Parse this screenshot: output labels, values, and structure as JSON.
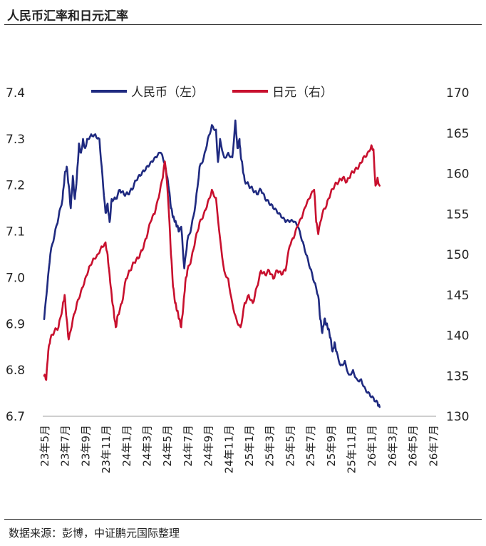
{
  "title": "人民币汇率和日元汇率",
  "source": "数据来源：彭博，中证鹏元国际整理",
  "chart_data": {
    "type": "line",
    "left_axis": {
      "min": 6.7,
      "max": 7.4,
      "ticks": [
        "6.7",
        "6.8",
        "6.9",
        "7.0",
        "7.1",
        "7.2",
        "7.3",
        "7.4"
      ]
    },
    "right_axis": {
      "min": 130,
      "max": 170,
      "ticks": [
        "130",
        "135",
        "140",
        "145",
        "150",
        "155",
        "160",
        "165",
        "170"
      ]
    },
    "x_ticks": [
      "23年5月",
      "23年7月",
      "23年9月",
      "23年11月",
      "24年1月",
      "24年3月",
      "24年5月",
      "24年7月",
      "24年9月",
      "24年11月",
      "25年1月",
      "25年3月",
      "25年5月",
      "25年7月",
      "25年9月",
      "25年11月",
      "26年1月",
      "26年3月",
      "26年5月",
      "26年7月"
    ],
    "legend": {
      "position": "top",
      "entries": [
        "人民币（左）",
        "日元（右）"
      ]
    },
    "series": [
      {
        "name": "人民币（左）",
        "axis": "left",
        "color": "#1f2a80",
        "points": [
          [
            0,
            6.91
          ],
          [
            0.15,
            6.98
          ],
          [
            0.3,
            7.05
          ],
          [
            0.5,
            7.09
          ],
          [
            0.7,
            7.13
          ],
          [
            0.9,
            7.17
          ],
          [
            1.0,
            7.22
          ],
          [
            1.1,
            7.24
          ],
          [
            1.2,
            7.2
          ],
          [
            1.3,
            7.15
          ],
          [
            1.4,
            7.22
          ],
          [
            1.5,
            7.17
          ],
          [
            1.6,
            7.22
          ],
          [
            1.7,
            7.29
          ],
          [
            1.8,
            7.27
          ],
          [
            1.9,
            7.3
          ],
          [
            2.0,
            7.28
          ],
          [
            2.1,
            7.3
          ],
          [
            2.3,
            7.31
          ],
          [
            2.5,
            7.31
          ],
          [
            2.7,
            7.3
          ],
          [
            2.85,
            7.22
          ],
          [
            3.0,
            7.14
          ],
          [
            3.1,
            7.16
          ],
          [
            3.2,
            7.12
          ],
          [
            3.3,
            7.17
          ],
          [
            3.5,
            7.17
          ],
          [
            3.7,
            7.19
          ],
          [
            3.9,
            7.18
          ],
          [
            4.1,
            7.18
          ],
          [
            4.3,
            7.19
          ],
          [
            4.5,
            7.21
          ],
          [
            4.7,
            7.22
          ],
          [
            4.9,
            7.23
          ],
          [
            5.1,
            7.24
          ],
          [
            5.3,
            7.25
          ],
          [
            5.5,
            7.26
          ],
          [
            5.7,
            7.27
          ],
          [
            5.85,
            7.25
          ],
          [
            6.0,
            7.22
          ],
          [
            6.1,
            7.19
          ],
          [
            6.2,
            7.15
          ],
          [
            6.3,
            7.13
          ],
          [
            6.4,
            7.12
          ],
          [
            6.5,
            7.11
          ],
          [
            6.6,
            7.1
          ],
          [
            6.7,
            7.11
          ],
          [
            6.85,
            7.02
          ],
          [
            7.0,
            7.08
          ],
          [
            7.2,
            7.11
          ],
          [
            7.4,
            7.16
          ],
          [
            7.6,
            7.24
          ],
          [
            7.8,
            7.26
          ],
          [
            8.0,
            7.3
          ],
          [
            8.2,
            7.33
          ],
          [
            8.4,
            7.32
          ],
          [
            8.5,
            7.25
          ],
          [
            8.6,
            7.3
          ],
          [
            8.8,
            7.26
          ],
          [
            9.0,
            7.27
          ],
          [
            9.2,
            7.26
          ],
          [
            9.35,
            7.34
          ],
          [
            9.45,
            7.28
          ],
          [
            9.55,
            7.3
          ],
          [
            9.6,
            7.27
          ],
          [
            9.7,
            7.24
          ],
          [
            9.8,
            7.21
          ],
          [
            10.0,
            7.2
          ],
          [
            10.2,
            7.19
          ],
          [
            10.4,
            7.18
          ],
          [
            10.6,
            7.19
          ],
          [
            10.8,
            7.17
          ],
          [
            11.0,
            7.16
          ],
          [
            11.2,
            7.15
          ],
          [
            11.4,
            7.14
          ],
          [
            11.6,
            7.13
          ],
          [
            11.8,
            7.12
          ],
          [
            12.0,
            7.12
          ],
          [
            12.2,
            7.12
          ],
          [
            12.4,
            7.11
          ],
          [
            12.6,
            7.08
          ],
          [
            12.8,
            7.05
          ],
          [
            13.0,
            7.02
          ],
          [
            13.2,
            6.99
          ],
          [
            13.4,
            6.96
          ],
          [
            13.5,
            6.91
          ],
          [
            13.6,
            6.88
          ],
          [
            13.7,
            6.91
          ],
          [
            13.8,
            6.9
          ],
          [
            13.9,
            6.89
          ],
          [
            14.0,
            6.87
          ],
          [
            14.1,
            6.84
          ],
          [
            14.2,
            6.86
          ],
          [
            14.3,
            6.84
          ],
          [
            14.5,
            6.81
          ],
          [
            14.7,
            6.82
          ],
          [
            14.9,
            6.79
          ],
          [
            15.1,
            6.8
          ],
          [
            15.3,
            6.78
          ],
          [
            15.5,
            6.78
          ],
          [
            15.7,
            6.76
          ],
          [
            15.9,
            6.75
          ],
          [
            16.1,
            6.74
          ],
          [
            16.3,
            6.73
          ],
          [
            16.4,
            6.72
          ]
        ]
      },
      {
        "name": "日元（右）",
        "axis": "right",
        "color": "#c8102e",
        "points": [
          [
            0,
            135.0
          ],
          [
            0.1,
            134.5
          ],
          [
            0.2,
            138.0
          ],
          [
            0.3,
            139.5
          ],
          [
            0.5,
            140.5
          ],
          [
            0.7,
            141.0
          ],
          [
            0.9,
            143.5
          ],
          [
            1.0,
            145.0
          ],
          [
            1.1,
            142.0
          ],
          [
            1.2,
            139.5
          ],
          [
            1.4,
            142.0
          ],
          [
            1.6,
            144.0
          ],
          [
            1.8,
            145.5
          ],
          [
            2.0,
            147.0
          ],
          [
            2.2,
            148.5
          ],
          [
            2.4,
            149.5
          ],
          [
            2.6,
            150.0
          ],
          [
            2.8,
            151.0
          ],
          [
            3.0,
            151.5
          ],
          [
            3.1,
            150.0
          ],
          [
            3.2,
            147.5
          ],
          [
            3.3,
            145.0
          ],
          [
            3.4,
            143.0
          ],
          [
            3.5,
            141.0
          ],
          [
            3.6,
            142.5
          ],
          [
            3.8,
            144.0
          ],
          [
            4.0,
            147.0
          ],
          [
            4.2,
            148.0
          ],
          [
            4.4,
            149.0
          ],
          [
            4.6,
            149.5
          ],
          [
            4.8,
            150.5
          ],
          [
            5.0,
            152.0
          ],
          [
            5.2,
            154.0
          ],
          [
            5.4,
            155.0
          ],
          [
            5.6,
            157.0
          ],
          [
            5.8,
            159.5
          ],
          [
            5.9,
            161.5
          ],
          [
            6.0,
            159.0
          ],
          [
            6.1,
            155.0
          ],
          [
            6.2,
            150.0
          ],
          [
            6.3,
            146.0
          ],
          [
            6.4,
            144.0
          ],
          [
            6.5,
            143.0
          ],
          [
            6.6,
            142.0
          ],
          [
            6.7,
            141.0
          ],
          [
            6.8,
            143.5
          ],
          [
            6.9,
            146.5
          ],
          [
            7.0,
            148.0
          ],
          [
            7.2,
            149.5
          ],
          [
            7.4,
            152.0
          ],
          [
            7.6,
            154.0
          ],
          [
            7.8,
            155.0
          ],
          [
            8.0,
            156.5
          ],
          [
            8.2,
            158.0
          ],
          [
            8.4,
            157.0
          ],
          [
            8.6,
            152.0
          ],
          [
            8.8,
            148.0
          ],
          [
            9.0,
            147.0
          ],
          [
            9.2,
            144.0
          ],
          [
            9.4,
            142.0
          ],
          [
            9.6,
            141.0
          ],
          [
            9.8,
            144.0
          ],
          [
            10.0,
            145.0
          ],
          [
            10.2,
            144.0
          ],
          [
            10.4,
            146.0
          ],
          [
            10.6,
            148.0
          ],
          [
            10.8,
            147.5
          ],
          [
            11.0,
            148.0
          ],
          [
            11.2,
            147.0
          ],
          [
            11.4,
            148.0
          ],
          [
            11.6,
            147.5
          ],
          [
            11.8,
            148.0
          ],
          [
            12.0,
            151.0
          ],
          [
            12.2,
            152.0
          ],
          [
            12.4,
            153.5
          ],
          [
            12.6,
            154.5
          ],
          [
            12.8,
            156.0
          ],
          [
            13.0,
            157.0
          ],
          [
            13.2,
            158.0
          ],
          [
            13.3,
            154.0
          ],
          [
            13.4,
            152.5
          ],
          [
            13.6,
            155.0
          ],
          [
            13.8,
            156.0
          ],
          [
            14.0,
            157.5
          ],
          [
            14.2,
            158.5
          ],
          [
            14.4,
            159.0
          ],
          [
            14.6,
            159.5
          ],
          [
            14.8,
            159.0
          ],
          [
            15.0,
            160.0
          ],
          [
            15.2,
            160.5
          ],
          [
            15.4,
            161.0
          ],
          [
            15.6,
            162.0
          ],
          [
            15.8,
            162.5
          ],
          [
            16.0,
            163.5
          ],
          [
            16.1,
            163.0
          ],
          [
            16.2,
            158.5
          ],
          [
            16.3,
            159.5
          ],
          [
            16.4,
            158.5
          ]
        ]
      }
    ]
  }
}
